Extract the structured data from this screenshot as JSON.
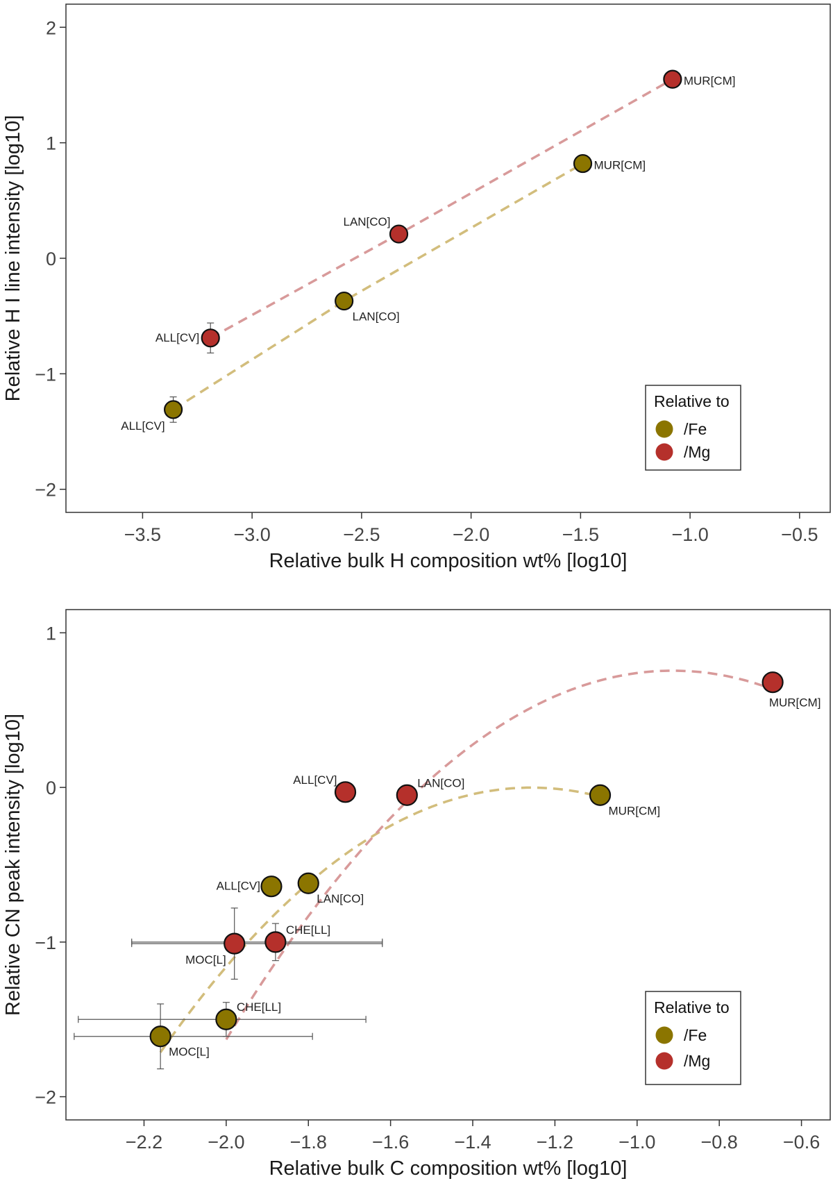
{
  "chart_data": [
    {
      "type": "scatter",
      "title": "",
      "xlabel": "Relative bulk H composition wt% [log10]",
      "ylabel": "Relative H I line intensity [log10]",
      "xlim": [
        -3.85,
        -0.36
      ],
      "ylim": [
        -2.2,
        2.2
      ],
      "xticks": [
        -3.5,
        -3.0,
        -2.5,
        -2.0,
        -1.5,
        -1.0,
        -0.5
      ],
      "xtick_labels": [
        "−3.5",
        "−3.0",
        "−2.5",
        "−2.0",
        "−1.5",
        "−1.0",
        "−0.5"
      ],
      "yticks": [
        -2,
        -1,
        0,
        1,
        2
      ],
      "ytick_labels": [
        "−2",
        "−1",
        "0",
        "1",
        "2"
      ],
      "legend": {
        "title": "Relative to",
        "position": "bottom-right"
      },
      "series": [
        {
          "name": "/Fe",
          "color": "#8B7500",
          "fit_color": "#D2BD7C",
          "fit": [
            [
              -3.36,
              -1.31
            ],
            [
              -2.58,
              -0.37
            ],
            [
              -1.49,
              0.82
            ]
          ],
          "points": [
            {
              "label": "ALL[CV]",
              "x": -3.36,
              "y": -1.31,
              "yerr": 0.11,
              "label_side": "bottom-left"
            },
            {
              "label": "LAN[CO]",
              "x": -2.58,
              "y": -0.37,
              "label_side": "bottom-right"
            },
            {
              "label": "MUR[CM]",
              "x": -1.49,
              "y": 0.82,
              "label_side": "right"
            }
          ]
        },
        {
          "name": "/Mg",
          "color": "#B5302B",
          "fit_color": "#D89A9A",
          "fit": [
            [
              -3.19,
              -0.69
            ],
            [
              -2.33,
              0.21
            ],
            [
              -1.08,
              1.55
            ]
          ],
          "points": [
            {
              "label": "ALL[CV]",
              "x": -3.19,
              "y": -0.69,
              "yerr": 0.13,
              "label_side": "left"
            },
            {
              "label": "LAN[CO]",
              "x": -2.33,
              "y": 0.21,
              "label_side": "top-left"
            },
            {
              "label": "MUR[CM]",
              "x": -1.08,
              "y": 1.55,
              "yerr": 0.05,
              "label_side": "right"
            }
          ]
        }
      ]
    },
    {
      "type": "scatter",
      "title": "",
      "xlabel": "Relative bulk C composition wt% [log10]",
      "ylabel": "Relative CN peak intensity [log10]",
      "xlim": [
        -2.39,
        -0.53
      ],
      "ylim": [
        -2.15,
        1.15
      ],
      "xticks": [
        -2.2,
        -2.0,
        -1.8,
        -1.6,
        -1.4,
        -1.2,
        -1.0,
        -0.8,
        -0.6
      ],
      "xtick_labels": [
        "−2.2",
        "−2.0",
        "−1.8",
        "−1.6",
        "−1.4",
        "−1.2",
        "−1.0",
        "−0.8",
        "−0.6"
      ],
      "yticks": [
        -2,
        -1,
        0,
        1
      ],
      "ytick_labels": [
        "−2",
        "−1",
        "0",
        "1"
      ],
      "legend": {
        "title": "Relative to",
        "position": "bottom-right"
      },
      "series": [
        {
          "name": "/Fe",
          "color": "#8B7500",
          "fit_color": "#D2BD7C",
          "fit_quadratic": {
            "a": -2.1,
            "b": -5.28,
            "c": -3.32,
            "x_from": -2.16,
            "x_to": -1.09
          },
          "points": [
            {
              "label": "MOC[L]",
              "x": -2.16,
              "y": -1.61,
              "xerr": [
                0.21,
                0.37
              ],
              "yerr": [
                0.21,
                0.21
              ],
              "label_side": "bottom-right"
            },
            {
              "label": "CHE[LL]",
              "x": -2.0,
              "y": -1.5,
              "xerr": [
                0.36,
                0.34
              ],
              "yerr": [
                0.11,
                0.11
              ],
              "label_side": "top-right"
            },
            {
              "label": "ALL[CV]",
              "x": -1.89,
              "y": -0.64,
              "label_side": "left"
            },
            {
              "label": "LAN[CO]",
              "x": -1.8,
              "y": -0.62,
              "label_side": "bottom-right"
            },
            {
              "label": "MUR[CM]",
              "x": -1.09,
              "y": -0.05,
              "label_side": "bottom-right"
            }
          ]
        },
        {
          "name": "/Mg",
          "color": "#B5302B",
          "fit_color": "#D89A9A",
          "fit_quadratic": {
            "a": -2.02,
            "b": -3.69,
            "c": -0.93,
            "x_from": -2.0,
            "x_to": -0.67
          },
          "points": [
            {
              "label": "MOC[L]",
              "x": -1.98,
              "y": -1.01,
              "xerr": [
                0.25,
                0.36
              ],
              "yerr": [
                0.23,
                0.23
              ],
              "label_side": "bottom-left"
            },
            {
              "label": "CHE[LL]",
              "x": -1.88,
              "y": -1.0,
              "xerr": [
                0.35,
                0.26
              ],
              "yerr": [
                0.12,
                0.12
              ],
              "label_side": "top-right"
            },
            {
              "label": "ALL[CV]",
              "x": -1.71,
              "y": -0.03,
              "label_side": "top-left"
            },
            {
              "label": "LAN[CO]",
              "x": -1.56,
              "y": -0.05,
              "label_side": "top-right"
            },
            {
              "label": "MUR[CM]",
              "x": -0.67,
              "y": 0.68,
              "label_side": "bottom"
            }
          ]
        }
      ]
    }
  ]
}
